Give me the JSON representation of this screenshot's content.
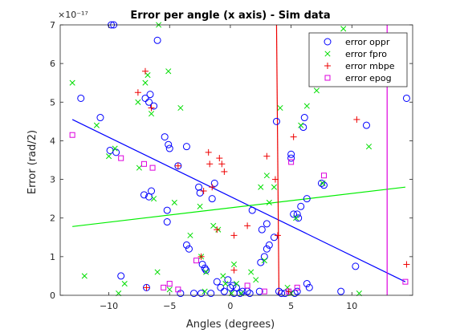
{
  "chart_data": {
    "type": "scatter",
    "title": "Error per angle (x axis)  - Sim data",
    "xlabel": "Angles (degrees)",
    "ylabel": "Error (rad/2)",
    "y_exponent_label": "×10⁻¹⁷",
    "xlim": [
      -14,
      15
    ],
    "ylim": [
      0,
      7
    ],
    "xticks": [
      -10,
      -5,
      0,
      5,
      10
    ],
    "xtick_labels": [
      "−10",
      "−5",
      "0",
      "5",
      "10"
    ],
    "yticks": [
      0,
      1,
      2,
      3,
      4,
      5,
      6,
      7
    ],
    "ytick_labels": [
      "0",
      "1",
      "2",
      "3",
      "4",
      "5",
      "6",
      "7"
    ],
    "grid": false,
    "legend_position": "top-right",
    "series": [
      {
        "name": "error oppr",
        "marker": "circle",
        "color": "#0000ff",
        "points": [
          [
            -12.3,
            5.1
          ],
          [
            -10.7,
            4.6
          ],
          [
            -9.8,
            7.0
          ],
          [
            -9.6,
            7.0
          ],
          [
            -9.9,
            3.75
          ],
          [
            -9.4,
            3.7
          ],
          [
            -9.0,
            0.5
          ],
          [
            -7.1,
            2.6
          ],
          [
            -6.7,
            2.55
          ],
          [
            -6.5,
            2.7
          ],
          [
            -6.6,
            5.2
          ],
          [
            -6.7,
            5.0
          ],
          [
            -6.3,
            4.9
          ],
          [
            -7.0,
            5.1
          ],
          [
            -6.0,
            6.6
          ],
          [
            -6.9,
            0.2
          ],
          [
            -5.4,
            4.1
          ],
          [
            -5.1,
            3.9
          ],
          [
            -5.0,
            3.8
          ],
          [
            -5.2,
            2.2
          ],
          [
            -5.2,
            1.9
          ],
          [
            -4.3,
            3.35
          ],
          [
            -3.6,
            1.3
          ],
          [
            -3.4,
            1.2
          ],
          [
            -3.6,
            3.85
          ],
          [
            -2.6,
            2.8
          ],
          [
            -2.5,
            2.65
          ],
          [
            -2.3,
            0.8
          ],
          [
            -2.1,
            0.7
          ],
          [
            -2.0,
            0.65
          ],
          [
            -1.5,
            2.5
          ],
          [
            -1.3,
            2.9
          ],
          [
            -1.1,
            0.35
          ],
          [
            -0.8,
            0.2
          ],
          [
            -0.5,
            0.1
          ],
          [
            -0.2,
            0.4
          ],
          [
            -4.1,
            0.05
          ],
          [
            -3.0,
            0.05
          ],
          [
            -2.4,
            0.05
          ],
          [
            -1.6,
            0.05
          ],
          [
            0.0,
            0.2
          ],
          [
            0.2,
            0.25
          ],
          [
            0.5,
            0.2
          ],
          [
            0.3,
            0.05
          ],
          [
            0.8,
            0.05
          ],
          [
            1.0,
            0.1
          ],
          [
            1.6,
            0.05
          ],
          [
            1.8,
            2.2
          ],
          [
            2.4,
            0.1
          ],
          [
            2.5,
            0.85
          ],
          [
            2.8,
            1.0
          ],
          [
            3.0,
            1.2
          ],
          [
            3.2,
            1.3
          ],
          [
            2.6,
            1.7
          ],
          [
            3.0,
            1.85
          ],
          [
            3.6,
            1.5
          ],
          [
            3.8,
            4.5
          ],
          [
            4.0,
            0.1
          ],
          [
            4.2,
            0.05
          ],
          [
            4.5,
            0.05
          ],
          [
            5.0,
            3.65
          ],
          [
            5.0,
            3.55
          ],
          [
            5.2,
            2.1
          ],
          [
            5.5,
            2.1
          ],
          [
            5.6,
            2.0
          ],
          [
            5.8,
            2.3
          ],
          [
            6.0,
            4.35
          ],
          [
            6.1,
            4.6
          ],
          [
            6.3,
            2.5
          ],
          [
            6.3,
            0.3
          ],
          [
            6.5,
            0.2
          ],
          [
            7.5,
            2.9
          ],
          [
            7.7,
            2.85
          ],
          [
            9.1,
            0.1
          ],
          [
            10.3,
            0.75
          ],
          [
            11.2,
            4.4
          ],
          [
            14.5,
            5.1
          ],
          [
            5.3,
            0.05
          ],
          [
            5.5,
            0.1
          ],
          [
            1.4,
            0.1
          ]
        ]
      },
      {
        "name": "error fpro",
        "marker": "x",
        "color": "#00dd00",
        "points": [
          [
            -13.0,
            5.5
          ],
          [
            -12.0,
            0.5
          ],
          [
            -11.0,
            4.4
          ],
          [
            -10.0,
            3.6
          ],
          [
            -9.5,
            3.8
          ],
          [
            -9.2,
            0.05
          ],
          [
            -8.7,
            0.3
          ],
          [
            -7.5,
            3.3
          ],
          [
            -7.0,
            5.5
          ],
          [
            -6.8,
            5.7
          ],
          [
            -6.5,
            4.7
          ],
          [
            -6.3,
            2.5
          ],
          [
            -6.0,
            0.6
          ],
          [
            -5.9,
            7.0
          ],
          [
            -5.1,
            5.8
          ],
          [
            -5.0,
            0.15
          ],
          [
            -4.6,
            2.4
          ],
          [
            -4.1,
            4.85
          ],
          [
            -3.3,
            1.55
          ],
          [
            -2.5,
            2.3
          ],
          [
            -2.4,
            1.0
          ],
          [
            -2.0,
            0.6
          ],
          [
            -1.4,
            1.8
          ],
          [
            -1.0,
            1.7
          ],
          [
            -0.6,
            0.5
          ],
          [
            -0.4,
            0.3
          ],
          [
            0.3,
            0.8
          ],
          [
            0.5,
            0.3
          ],
          [
            0.9,
            0.05
          ],
          [
            1.7,
            0.6
          ],
          [
            2.1,
            0.4
          ],
          [
            2.5,
            2.8
          ],
          [
            2.8,
            0.9
          ],
          [
            3.0,
            3.1
          ],
          [
            3.2,
            2.4
          ],
          [
            3.6,
            2.8
          ],
          [
            4.1,
            4.85
          ],
          [
            4.7,
            0.2
          ],
          [
            5.0,
            0.05
          ],
          [
            5.4,
            2.0
          ],
          [
            5.8,
            4.4
          ],
          [
            6.3,
            4.9
          ],
          [
            7.1,
            5.3
          ],
          [
            7.6,
            2.9
          ],
          [
            9.3,
            6.9
          ],
          [
            10.6,
            0.05
          ],
          [
            11.4,
            3.85
          ],
          [
            -7.6,
            5.0
          ],
          [
            -2.1,
            0.1
          ],
          [
            0.1,
            0.05
          ]
        ]
      },
      {
        "name": "error mbpe",
        "marker": "plus",
        "color": "#ee0000",
        "points": [
          [
            -7.6,
            5.25
          ],
          [
            -7.0,
            5.8
          ],
          [
            -6.9,
            0.2
          ],
          [
            -6.5,
            4.85
          ],
          [
            -4.3,
            3.35
          ],
          [
            -2.4,
            1.0
          ],
          [
            -2.2,
            2.7
          ],
          [
            -1.8,
            3.7
          ],
          [
            -1.7,
            3.4
          ],
          [
            -1.5,
            2.8
          ],
          [
            -1.1,
            1.7
          ],
          [
            -0.9,
            3.55
          ],
          [
            -0.7,
            3.4
          ],
          [
            -0.5,
            3.2
          ],
          [
            0.3,
            0.65
          ],
          [
            0.3,
            1.55
          ],
          [
            1.4,
            1.8
          ],
          [
            3.0,
            3.6
          ],
          [
            3.7,
            3.0
          ],
          [
            3.9,
            1.55
          ],
          [
            4.8,
            0.1
          ],
          [
            5.2,
            4.1
          ],
          [
            10.4,
            4.55
          ],
          [
            14.5,
            0.8
          ]
        ]
      },
      {
        "name": "error epog",
        "marker": "square",
        "color": "#dd00dd",
        "points": [
          [
            -13.0,
            4.15
          ],
          [
            -9.0,
            3.55
          ],
          [
            -7.1,
            3.4
          ],
          [
            -6.4,
            3.3
          ],
          [
            -5.5,
            0.2
          ],
          [
            -5.0,
            0.3
          ],
          [
            -4.3,
            0.15
          ],
          [
            -2.8,
            0.9
          ],
          [
            1.4,
            0.25
          ],
          [
            2.8,
            0.1
          ],
          [
            4.8,
            0.1
          ],
          [
            5.0,
            3.45
          ],
          [
            5.5,
            0.2
          ],
          [
            7.7,
            3.1
          ],
          [
            14.4,
            0.35
          ]
        ]
      }
    ],
    "trend_lines": [
      {
        "color": "#0000ff",
        "x": [
          -13,
          14.4
        ],
        "y": [
          4.55,
          0.35
        ]
      },
      {
        "color": "#00ee00",
        "x": [
          -13,
          14.4
        ],
        "y": [
          1.78,
          2.8
        ]
      }
    ],
    "vertical_lines": [
      {
        "color": "#ee0000",
        "x_top": 3.8,
        "x_bottom": 4.0
      },
      {
        "color": "#dd00dd",
        "x_top": 12.9,
        "x_bottom": 12.9
      }
    ]
  }
}
